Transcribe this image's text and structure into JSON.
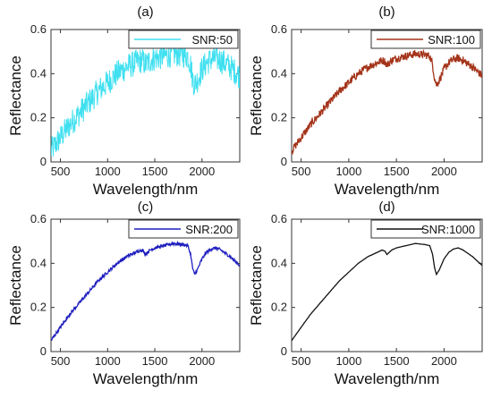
{
  "chart_data": [
    {
      "type": "line",
      "panel_label": "(a)",
      "xlabel": "Wavelength/nm",
      "ylabel": "Reflectance",
      "xlim": [
        400,
        2400
      ],
      "ylim": [
        0,
        0.6
      ],
      "xticks": [
        "500",
        "1000",
        "1500",
        "2000"
      ],
      "xtick_values": [
        500,
        1000,
        1500,
        2000
      ],
      "yticks": [
        "0",
        "0.2",
        "0.4",
        "0.6"
      ],
      "ytick_values": [
        0,
        0.2,
        0.4,
        0.6
      ],
      "legend": "top-right",
      "series": [
        {
          "name": "SNR:50",
          "color": "#3fe0f0",
          "noise": 0.06
        }
      ]
    },
    {
      "type": "line",
      "panel_label": "(b)",
      "xlabel": "Wavelength/nm",
      "ylabel": "Reflectance",
      "xlim": [
        400,
        2400
      ],
      "ylim": [
        0,
        0.6
      ],
      "xticks": [
        "500",
        "1000",
        "1500",
        "2000"
      ],
      "xtick_values": [
        500,
        1000,
        1500,
        2000
      ],
      "yticks": [
        "0",
        "0.2",
        "0.4",
        "0.6"
      ],
      "ytick_values": [
        0,
        0.2,
        0.4,
        0.6
      ],
      "legend": "top-right",
      "series": [
        {
          "name": "SNR:100",
          "color": "#a4341a",
          "noise": 0.018
        }
      ]
    },
    {
      "type": "line",
      "panel_label": "(c)",
      "xlabel": "Wavelength/nm",
      "ylabel": "Reflectance",
      "xlim": [
        400,
        2400
      ],
      "ylim": [
        0,
        0.6
      ],
      "xticks": [
        "500",
        "1000",
        "1500",
        "2000"
      ],
      "xtick_values": [
        500,
        1000,
        1500,
        2000
      ],
      "yticks": [
        "0",
        "0.2",
        "0.4",
        "0.6"
      ],
      "ytick_values": [
        0,
        0.2,
        0.4,
        0.6
      ],
      "legend": "top-right",
      "series": [
        {
          "name": "SNR:200",
          "color": "#1f1fbf",
          "noise": 0.007
        }
      ]
    },
    {
      "type": "line",
      "panel_label": "(d)",
      "xlabel": "Wavelength/nm",
      "ylabel": "Reflectance",
      "xlim": [
        400,
        2400
      ],
      "ylim": [
        0,
        0.6
      ],
      "xticks": [
        "500",
        "1000",
        "1500",
        "2000"
      ],
      "xtick_values": [
        500,
        1000,
        1500,
        2000
      ],
      "yticks": [
        "0",
        "0.2",
        "0.4",
        "0.6"
      ],
      "ytick_values": [
        0,
        0.2,
        0.4,
        0.6
      ],
      "legend": "top-right",
      "series": [
        {
          "name": "SNR:1000",
          "color": "#111111",
          "noise": 0
        }
      ]
    }
  ],
  "spectrum": {
    "x": [
      400,
      450,
      500,
      550,
      600,
      700,
      800,
      900,
      1000,
      1100,
      1200,
      1300,
      1350,
      1380,
      1400,
      1450,
      1500,
      1600,
      1700,
      1800,
      1850,
      1880,
      1900,
      1920,
      1950,
      2000,
      2050,
      2100,
      2150,
      2200,
      2250,
      2300,
      2350,
      2400
    ],
    "y": [
      0.05,
      0.08,
      0.11,
      0.14,
      0.17,
      0.22,
      0.27,
      0.32,
      0.36,
      0.4,
      0.43,
      0.45,
      0.46,
      0.455,
      0.44,
      0.46,
      0.47,
      0.48,
      0.49,
      0.485,
      0.48,
      0.44,
      0.38,
      0.35,
      0.37,
      0.42,
      0.45,
      0.465,
      0.47,
      0.46,
      0.445,
      0.43,
      0.41,
      0.39
    ]
  }
}
